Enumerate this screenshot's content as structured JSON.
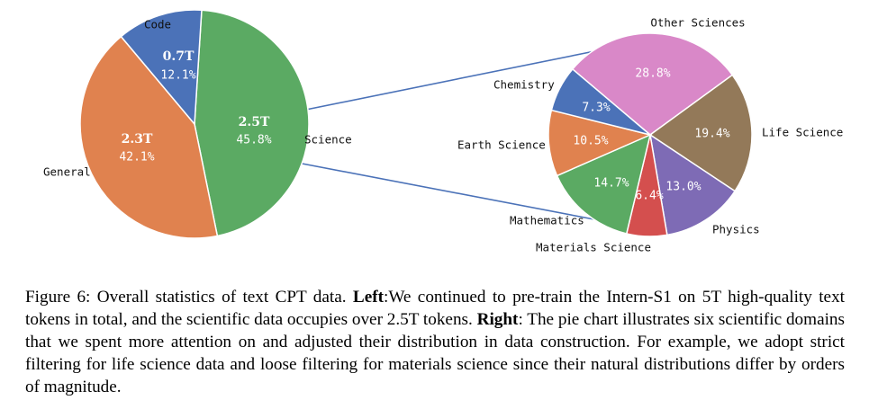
{
  "chart_data": [
    {
      "type": "pie",
      "slices": [
        {
          "label": "Science",
          "percent": 45.8,
          "tokens": "2.5T",
          "color": "#5BAA63"
        },
        {
          "label": "General",
          "percent": 42.1,
          "tokens": "2.3T",
          "color": "#E0824F"
        },
        {
          "label": "Code",
          "percent": 12.1,
          "tokens": "0.7T",
          "color": "#4B72B8"
        }
      ],
      "percent_labels": [
        "45.8%",
        "42.1%",
        "12.1%"
      ]
    },
    {
      "type": "pie",
      "slices": [
        {
          "label": "Other Sciences",
          "percent": 28.8,
          "color": "#D988C8"
        },
        {
          "label": "Life Science",
          "percent": 19.4,
          "color": "#937959"
        },
        {
          "label": "Physics",
          "percent": 13.0,
          "color": "#7E6BB5"
        },
        {
          "label": "Materials Science",
          "percent": 6.4,
          "color": "#D44F4E"
        },
        {
          "label": "Mathematics",
          "percent": 14.7,
          "color": "#5BAA63"
        },
        {
          "label": "Earth Science",
          "percent": 10.5,
          "color": "#E0824F"
        },
        {
          "label": "Chemistry",
          "percent": 7.3,
          "color": "#4B72B8"
        }
      ],
      "percent_labels": [
        "28.8%",
        "19.4%",
        "13.0%",
        "6.4%",
        "14.7%",
        "10.5%",
        "7.3%"
      ]
    }
  ],
  "caption": {
    "prefix": "Figure 6: Overall statistics of text CPT data. ",
    "left_bold": "Left",
    "left_text": ":We continued to pre-train the Intern-S1 on 5T high-quality text tokens in total, and the scientific data occupies over 2.5T tokens. ",
    "right_bold": "Right",
    "right_text": ": The pie chart illustrates six scientific domains that we spent more attention on and adjusted their distribution in data construction. For example, we adopt strict filtering for life science data and loose filtering for materials science since their natural distributions differ by orders of magnitude."
  }
}
